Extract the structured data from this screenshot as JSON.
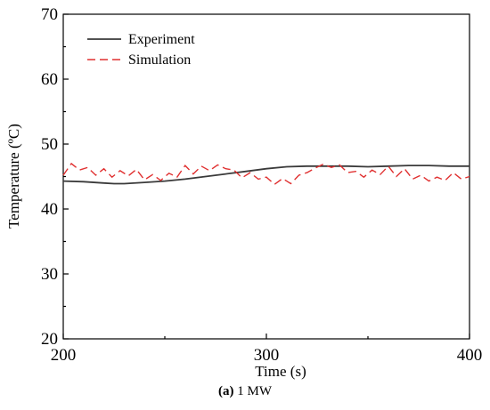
{
  "chart_data": {
    "type": "line",
    "xlabel": "Time (s)",
    "ylabel": "Temperature (ºC)",
    "xlim": [
      200,
      400
    ],
    "ylim": [
      20,
      70
    ],
    "xticks": [
      200,
      300,
      400
    ],
    "yticks": [
      20,
      30,
      40,
      50,
      60,
      70
    ],
    "legend_position": "top-left",
    "series": [
      {
        "name": "Experiment",
        "style": "solid",
        "color": "#3a3a3a",
        "x": [
          200,
          210,
          220,
          225,
          230,
          240,
          250,
          260,
          270,
          280,
          290,
          300,
          310,
          320,
          330,
          340,
          350,
          360,
          370,
          380,
          390,
          400
        ],
        "y": [
          44.3,
          44.2,
          44.0,
          43.9,
          43.9,
          44.1,
          44.3,
          44.6,
          45.0,
          45.4,
          45.8,
          46.2,
          46.5,
          46.6,
          46.6,
          46.6,
          46.5,
          46.6,
          46.7,
          46.7,
          46.6,
          46.6
        ]
      },
      {
        "name": "Simulation",
        "style": "dashed",
        "color": "#e03030",
        "x": [
          200,
          204,
          208,
          212,
          216,
          220,
          224,
          228,
          232,
          236,
          240,
          244,
          248,
          252,
          256,
          260,
          264,
          268,
          272,
          276,
          280,
          284,
          288,
          292,
          296,
          300,
          304,
          308,
          312,
          316,
          320,
          324,
          328,
          332,
          336,
          340,
          344,
          348,
          352,
          356,
          360,
          364,
          368,
          372,
          376,
          380,
          384,
          388,
          392,
          396,
          400
        ],
        "y": [
          45.2,
          47.0,
          46.0,
          46.4,
          45.2,
          46.2,
          44.9,
          45.9,
          45.1,
          46.1,
          44.5,
          45.3,
          44.4,
          45.5,
          44.9,
          46.7,
          45.4,
          46.6,
          45.9,
          46.8,
          46.2,
          46.0,
          44.8,
          45.6,
          44.6,
          44.9,
          43.8,
          44.7,
          43.9,
          45.2,
          45.6,
          46.3,
          46.9,
          46.4,
          46.8,
          45.6,
          45.8,
          44.9,
          46.0,
          45.3,
          46.6,
          45.0,
          46.2,
          44.6,
          45.2,
          44.3,
          44.9,
          44.4,
          45.6,
          44.6,
          45.0
        ]
      }
    ]
  },
  "caption": {
    "label": "(a)",
    "text": " 1 MW"
  }
}
